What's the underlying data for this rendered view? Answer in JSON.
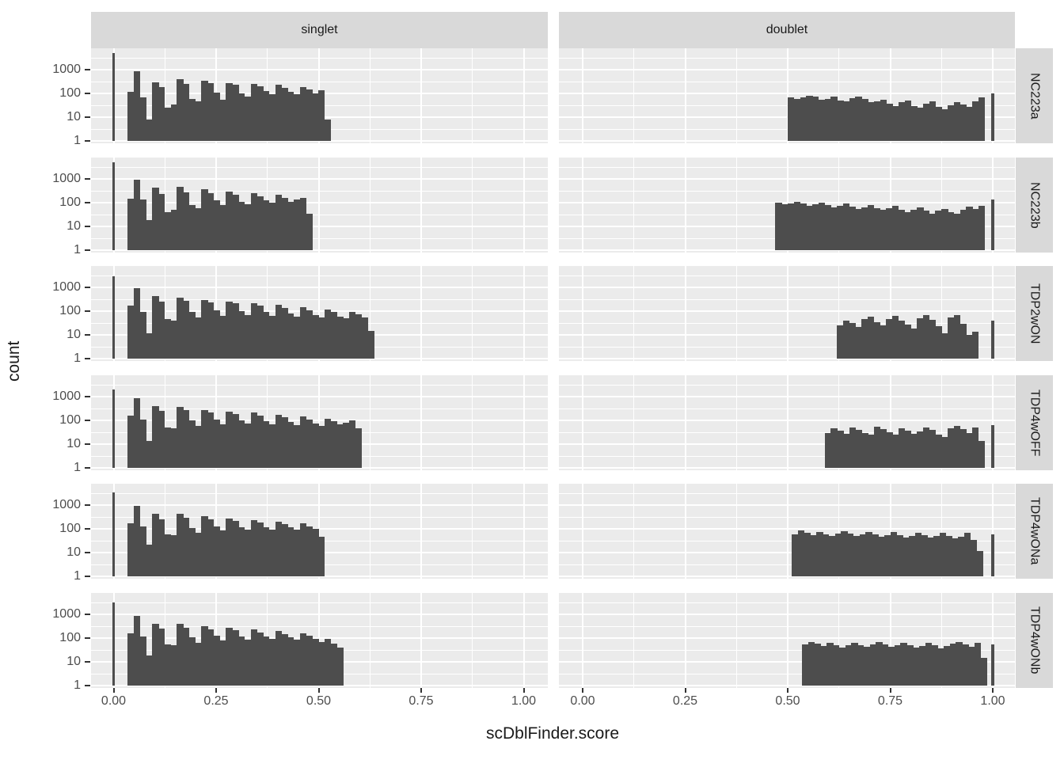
{
  "figure": {
    "x_axis_title": "scDblFinder.score",
    "y_axis_title": "count",
    "col_facets": [
      "singlet",
      "doublet"
    ],
    "row_facets": [
      "NC223a",
      "NC223b",
      "TDP2wON",
      "TDP4wOFF",
      "TDP4wONa",
      "TDP4wONb"
    ],
    "x_ticks": [
      "0.00",
      "0.25",
      "0.50",
      "0.75",
      "1.00"
    ],
    "y_ticks": [
      "1000",
      "100",
      "10",
      "1"
    ],
    "colors": {
      "bar": "#4D4D4D",
      "panel_bg": "#EBEBEB",
      "strip_bg": "#D9D9D9",
      "gridline": "#FFFFFF",
      "tick_label": "#4D4D4D",
      "title_text": "#1A1A1A"
    }
  },
  "chart_data": {
    "type": "bar",
    "subtype": "faceted-histogram",
    "title": "",
    "xlabel": "scDblFinder.score",
    "ylabel": "count",
    "x_range": [
      -0.055,
      1.055
    ],
    "x_tick_values": [
      0.0,
      0.25,
      0.5,
      0.75,
      1.0
    ],
    "y_scale": "log10",
    "y_tick_values": [
      1,
      10,
      100,
      1000
    ],
    "y_top_count": 7400,
    "binwidth": 0.015,
    "grid": "on",
    "legend": "none",
    "panels": [
      {
        "row": "NC223a",
        "col": "singlet",
        "spike_x": 0,
        "spike_count": 5000,
        "bins_start": 0.034,
        "counts": [
          115,
          870,
          70,
          8,
          300,
          180,
          25,
          35,
          390,
          250,
          60,
          45,
          330,
          270,
          110,
          55,
          280,
          230,
          100,
          75,
          260,
          200,
          130,
          95,
          230,
          170,
          120,
          90,
          190,
          150,
          100,
          135,
          8
        ]
      },
      {
        "row": "NC223a",
        "col": "doublet",
        "spike_x": 1,
        "spike_count": 100,
        "bins_start": 0.5,
        "counts": [
          70,
          58,
          66,
          80,
          74,
          55,
          60,
          72,
          52,
          46,
          64,
          76,
          58,
          42,
          46,
          56,
          36,
          30,
          42,
          52,
          30,
          25,
          36,
          46,
          28,
          22,
          32,
          42,
          34,
          28,
          46,
          68
        ]
      },
      {
        "row": "NC223b",
        "col": "singlet",
        "spike_x": 0,
        "spike_count": 5000,
        "bins_start": 0.034,
        "counts": [
          150,
          900,
          140,
          18,
          420,
          230,
          40,
          50,
          450,
          280,
          80,
          60,
          380,
          260,
          130,
          80,
          300,
          220,
          110,
          85,
          250,
          190,
          130,
          100,
          210,
          160,
          110,
          140,
          160,
          35
        ]
      },
      {
        "row": "NC223b",
        "col": "doublet",
        "spike_x": 1,
        "spike_count": 140,
        "bins_start": 0.47,
        "counts": [
          100,
          85,
          95,
          112,
          90,
          75,
          85,
          100,
          80,
          65,
          75,
          92,
          70,
          55,
          65,
          80,
          60,
          50,
          60,
          72,
          50,
          40,
          50,
          62,
          45,
          35,
          45,
          55,
          40,
          35,
          50,
          66,
          55,
          75
        ]
      },
      {
        "row": "TDP2wON",
        "col": "singlet",
        "spike_x": 0,
        "spike_count": 3000,
        "bins_start": 0.034,
        "counts": [
          165,
          950,
          90,
          12,
          420,
          260,
          45,
          40,
          380,
          280,
          90,
          55,
          300,
          240,
          110,
          65,
          260,
          210,
          100,
          70,
          220,
          170,
          90,
          65,
          180,
          140,
          80,
          60,
          150,
          110,
          70,
          55,
          120,
          90,
          60,
          50,
          95,
          75,
          55,
          15
        ]
      },
      {
        "row": "TDP2wON",
        "col": "doublet",
        "spike_x": 1,
        "spike_count": 39,
        "bins_start": 0.62,
        "counts": [
          25,
          40,
          32,
          22,
          45,
          58,
          35,
          26,
          48,
          62,
          40,
          28,
          18,
          52,
          66,
          44,
          24,
          12,
          56,
          68,
          30,
          10,
          14
        ]
      },
      {
        "row": "TDP4wOFF",
        "col": "singlet",
        "spike_x": 0,
        "spike_count": 2000,
        "bins_start": 0.034,
        "counts": [
          160,
          850,
          110,
          14,
          400,
          250,
          50,
          45,
          360,
          270,
          100,
          60,
          280,
          220,
          110,
          70,
          240,
          190,
          100,
          75,
          210,
          160,
          95,
          70,
          175,
          135,
          85,
          65,
          145,
          110,
          75,
          60,
          120,
          95,
          70,
          80,
          100,
          47
        ]
      },
      {
        "row": "TDP4wOFF",
        "col": "doublet",
        "spike_x": 1,
        "spike_count": 65,
        "bins_start": 0.59,
        "counts": [
          30,
          45,
          38,
          28,
          50,
          40,
          30,
          25,
          55,
          42,
          32,
          26,
          48,
          38,
          28,
          35,
          52,
          40,
          26,
          20,
          45,
          58,
          42,
          30,
          50,
          14
        ]
      },
      {
        "row": "TDP4wONa",
        "col": "singlet",
        "spike_x": 0,
        "spike_count": 3400,
        "bins_start": 0.034,
        "counts": [
          170,
          900,
          130,
          22,
          430,
          260,
          60,
          55,
          420,
          290,
          110,
          70,
          330,
          250,
          130,
          85,
          280,
          220,
          120,
          90,
          240,
          185,
          120,
          95,
          200,
          155,
          115,
          90,
          165,
          130,
          100,
          47
        ]
      },
      {
        "row": "TDP4wONa",
        "col": "doublet",
        "spike_x": 1,
        "spike_count": 60,
        "bins_start": 0.51,
        "counts": [
          60,
          85,
          70,
          55,
          75,
          60,
          50,
          65,
          80,
          65,
          50,
          60,
          75,
          58,
          45,
          55,
          72,
          56,
          44,
          52,
          70,
          55,
          42,
          50,
          68,
          52,
          40,
          48,
          66,
          35,
          12
        ]
      },
      {
        "row": "TDP4wONb",
        "col": "singlet",
        "spike_x": 0,
        "spike_count": 3200,
        "bins_start": 0.034,
        "counts": [
          160,
          880,
          120,
          18,
          410,
          255,
          55,
          50,
          400,
          280,
          105,
          65,
          310,
          240,
          125,
          80,
          265,
          210,
          115,
          85,
          230,
          175,
          115,
          90,
          195,
          150,
          110,
          85,
          160,
          125,
          95,
          70,
          90,
          60,
          40
        ]
      },
      {
        "row": "TDP4wONb",
        "col": "doublet",
        "spike_x": 1,
        "spike_count": 55,
        "bins_start": 0.535,
        "counts": [
          55,
          70,
          58,
          45,
          62,
          50,
          40,
          52,
          65,
          52,
          42,
          55,
          68,
          54,
          42,
          50,
          64,
          50,
          40,
          48,
          62,
          50,
          38,
          46,
          60,
          70,
          56,
          44,
          65,
          15
        ]
      }
    ]
  }
}
